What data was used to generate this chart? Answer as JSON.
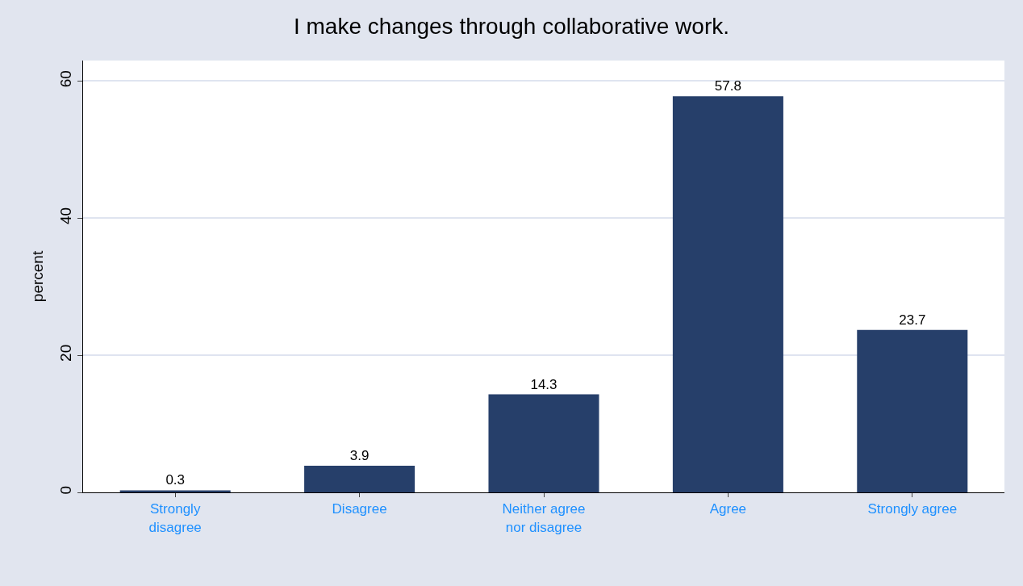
{
  "chart_data": {
    "type": "bar",
    "title": "I make changes through collaborative work.",
    "ylabel": "percent",
    "categories": [
      "Strongly\ndisagree",
      "Disagree",
      "Neither agree\nnor disagree",
      "Agree",
      "Strongly agree"
    ],
    "values": [
      0.3,
      3.9,
      14.3,
      57.8,
      23.7
    ],
    "color": "#263f6a",
    "data_labels": true,
    "ylim": [
      0,
      63
    ],
    "yticks": [
      0,
      20,
      40,
      60
    ],
    "grid": "y"
  }
}
